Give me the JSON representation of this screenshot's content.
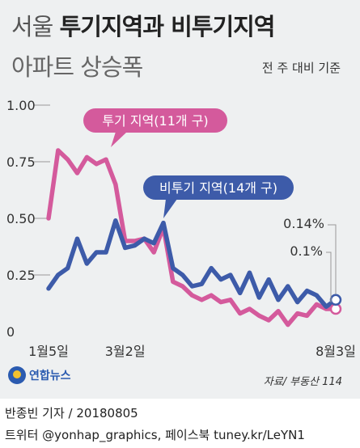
{
  "title": {
    "light": "서울 ",
    "bold": "투기지역과 비투기지역"
  },
  "subtitle": "아파트 상승폭",
  "basis_note": "전 주 대비 기준",
  "source": "자료/ 부동산 114",
  "logo_text": "연합뉴스",
  "credit": {
    "line1": "반종빈 기자 / 20180805",
    "line2": "트위터 @yonhap_graphics, 페이스북 tuney.kr/LeYN1"
  },
  "colors": {
    "speculative": "#d45a9c",
    "non_speculative": "#3d5ba9",
    "background": "#eef0f1"
  },
  "chart_data": {
    "type": "line",
    "ylim": [
      0,
      1.0
    ],
    "yticks": [
      0,
      0.25,
      0.5,
      0.75,
      1.0
    ],
    "ytick_labels": [
      "0",
      "0.25",
      "0.50",
      "0.75",
      "1.00"
    ],
    "x_tick_labels": [
      {
        "index": 0,
        "label": "1월5일"
      },
      {
        "index": 8,
        "label": "3월2일"
      },
      {
        "index": 30,
        "label": "8월3일"
      }
    ],
    "series": [
      {
        "name": "투기 지역(11개 구)",
        "color": "#d45a9c",
        "values": [
          0.5,
          0.8,
          0.76,
          0.7,
          0.77,
          0.74,
          0.76,
          0.65,
          0.4,
          0.4,
          0.41,
          0.35,
          0.46,
          0.22,
          0.2,
          0.16,
          0.14,
          0.16,
          0.13,
          0.14,
          0.08,
          0.1,
          0.07,
          0.05,
          0.09,
          0.03,
          0.08,
          0.07,
          0.12,
          0.1,
          0.1
        ],
        "end_label": "0.1%"
      },
      {
        "name": "비투기 지역(14개 구)",
        "color": "#3d5ba9",
        "values": [
          0.19,
          0.25,
          0.28,
          0.41,
          0.3,
          0.35,
          0.35,
          0.49,
          0.37,
          0.38,
          0.41,
          0.39,
          0.48,
          0.28,
          0.25,
          0.2,
          0.21,
          0.28,
          0.23,
          0.25,
          0.17,
          0.26,
          0.15,
          0.23,
          0.14,
          0.2,
          0.13,
          0.18,
          0.16,
          0.11,
          0.14
        ],
        "end_label": "0.14%"
      }
    ]
  }
}
